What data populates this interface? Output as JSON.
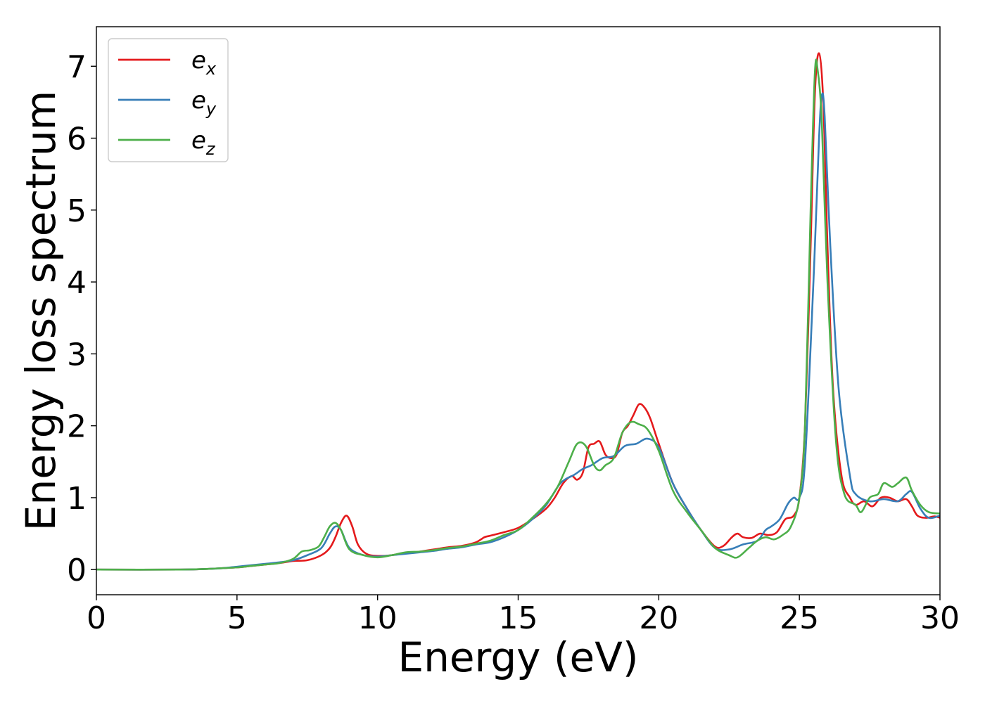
{
  "chart_data": {
    "type": "line",
    "xlabel": "Energy (eV)",
    "ylabel": "Energy loss spectrum",
    "xlim": [
      0,
      30
    ],
    "ylim": [
      -0.35,
      7.55
    ],
    "xticks": [
      0,
      5,
      10,
      15,
      20,
      25,
      30
    ],
    "yticks": [
      0,
      1,
      2,
      3,
      4,
      5,
      6,
      7
    ],
    "grid": false,
    "legend_position": "top-left",
    "series": [
      {
        "name": "e_x",
        "label_base": "e",
        "label_sub": "x",
        "color": "#e41a1c",
        "x": [
          0,
          3,
          4,
          4.5,
          5,
          5.5,
          6,
          6.5,
          7,
          7.5,
          8,
          8.3,
          8.5,
          8.7,
          8.9,
          9.1,
          9.3,
          9.6,
          10,
          10.5,
          11,
          11.5,
          12,
          12.5,
          13,
          13.5,
          13.8,
          14,
          14.5,
          15,
          15.5,
          16,
          16.3,
          16.6,
          16.9,
          17.1,
          17.3,
          17.5,
          17.7,
          17.9,
          18.1,
          18.3,
          18.5,
          18.7,
          18.9,
          19.1,
          19.3,
          19.5,
          19.7,
          20,
          20.5,
          21,
          21.5,
          22,
          22.3,
          22.6,
          22.8,
          23,
          23.3,
          23.6,
          23.9,
          24.2,
          24.5,
          24.8,
          25,
          25.2,
          25.4,
          25.55,
          25.7,
          25.85,
          26,
          26.2,
          26.5,
          26.8,
          27,
          27.3,
          27.6,
          27.9,
          28.2,
          28.5,
          28.8,
          29,
          29.2,
          29.5,
          29.8,
          30
        ],
        "y": [
          0,
          0,
          0.01,
          0.02,
          0.03,
          0.05,
          0.07,
          0.09,
          0.12,
          0.13,
          0.2,
          0.3,
          0.45,
          0.65,
          0.75,
          0.6,
          0.35,
          0.22,
          0.19,
          0.2,
          0.23,
          0.25,
          0.28,
          0.31,
          0.33,
          0.38,
          0.45,
          0.47,
          0.52,
          0.58,
          0.7,
          0.85,
          1.0,
          1.2,
          1.3,
          1.25,
          1.35,
          1.7,
          1.75,
          1.78,
          1.6,
          1.55,
          1.6,
          1.9,
          2.0,
          2.15,
          2.3,
          2.25,
          2.1,
          1.75,
          1.2,
          0.85,
          0.55,
          0.32,
          0.33,
          0.45,
          0.5,
          0.45,
          0.44,
          0.5,
          0.48,
          0.52,
          0.7,
          0.75,
          1.0,
          2.0,
          4.5,
          6.6,
          7.18,
          6.5,
          4.5,
          2.5,
          1.3,
          1.0,
          0.9,
          0.95,
          0.88,
          1.0,
          1.0,
          0.95,
          0.98,
          0.88,
          0.75,
          0.72,
          0.74,
          0.72
        ]
      },
      {
        "name": "e_y",
        "label_base": "e",
        "label_sub": "y",
        "color": "#377eb8",
        "x": [
          0,
          3,
          4,
          4.5,
          5,
          5.5,
          6,
          6.5,
          7,
          7.5,
          8,
          8.3,
          8.5,
          8.7,
          9,
          9.5,
          10,
          10.5,
          11,
          11.5,
          12,
          12.5,
          13,
          13.5,
          14,
          14.5,
          15,
          15.5,
          16,
          16.5,
          17,
          17.3,
          17.6,
          18,
          18.4,
          18.8,
          19.2,
          19.6,
          20,
          20.5,
          21,
          21.5,
          22,
          22.5,
          23,
          23.5,
          23.8,
          24,
          24.3,
          24.6,
          24.8,
          25,
          25.2,
          25.5,
          25.7,
          25.8,
          25.9,
          26.1,
          26.4,
          26.8,
          27,
          27.5,
          28,
          28.5,
          28.8,
          29,
          29.3,
          29.6,
          30
        ],
        "y": [
          0,
          0,
          0.01,
          0.02,
          0.04,
          0.06,
          0.08,
          0.1,
          0.13,
          0.2,
          0.3,
          0.5,
          0.6,
          0.55,
          0.3,
          0.2,
          0.18,
          0.2,
          0.22,
          0.24,
          0.26,
          0.29,
          0.31,
          0.35,
          0.38,
          0.45,
          0.55,
          0.7,
          0.9,
          1.2,
          1.32,
          1.4,
          1.45,
          1.55,
          1.58,
          1.72,
          1.75,
          1.82,
          1.7,
          1.2,
          0.85,
          0.55,
          0.3,
          0.28,
          0.35,
          0.4,
          0.55,
          0.6,
          0.7,
          0.92,
          1.0,
          1.0,
          1.5,
          4.0,
          6.0,
          6.6,
          6.3,
          4.5,
          2.5,
          1.3,
          1.05,
          0.95,
          0.98,
          0.95,
          1.05,
          1.08,
          0.85,
          0.72,
          0.75
        ]
      },
      {
        "name": "e_z",
        "label_base": "e",
        "label_sub": "z",
        "color": "#4daf4a",
        "x": [
          0,
          3,
          4,
          4.5,
          5,
          5.5,
          6,
          6.5,
          7,
          7.3,
          7.6,
          7.9,
          8.1,
          8.3,
          8.5,
          8.7,
          9,
          9.5,
          10,
          10.5,
          11,
          11.5,
          12,
          12.5,
          13,
          13.5,
          14,
          14.5,
          15,
          15.5,
          16,
          16.4,
          16.8,
          17.1,
          17.4,
          17.7,
          17.9,
          18.1,
          18.4,
          18.7,
          19,
          19.3,
          19.6,
          20,
          20.5,
          21,
          21.5,
          22,
          22.5,
          22.8,
          23.2,
          23.5,
          23.8,
          24.1,
          24.4,
          24.7,
          25,
          25.2,
          25.4,
          25.55,
          25.65,
          25.8,
          26,
          26.3,
          26.6,
          27,
          27.2,
          27.5,
          27.8,
          28,
          28.3,
          28.5,
          28.8,
          29,
          29.3,
          29.6,
          30
        ],
        "y": [
          0,
          0,
          0.01,
          0.02,
          0.03,
          0.05,
          0.07,
          0.09,
          0.15,
          0.25,
          0.27,
          0.32,
          0.45,
          0.6,
          0.65,
          0.55,
          0.28,
          0.2,
          0.17,
          0.2,
          0.24,
          0.25,
          0.27,
          0.3,
          0.32,
          0.36,
          0.4,
          0.48,
          0.55,
          0.72,
          0.92,
          1.15,
          1.5,
          1.75,
          1.72,
          1.45,
          1.38,
          1.45,
          1.55,
          1.9,
          2.05,
          2.02,
          1.95,
          1.65,
          1.1,
          0.8,
          0.55,
          0.3,
          0.2,
          0.17,
          0.3,
          0.4,
          0.45,
          0.42,
          0.48,
          0.6,
          1.0,
          2.0,
          5.0,
          6.9,
          6.95,
          6.2,
          4.0,
          1.8,
          1.05,
          0.9,
          0.8,
          1.0,
          1.05,
          1.2,
          1.15,
          1.2,
          1.28,
          1.1,
          0.9,
          0.8,
          0.78
        ]
      }
    ]
  }
}
